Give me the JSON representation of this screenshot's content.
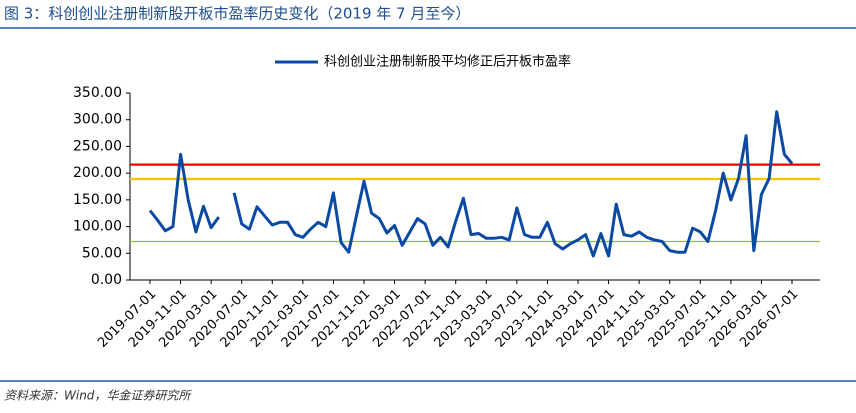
{
  "header": {
    "title": "图 3：科创创业注册制新股开板市盈率历史变化（2019 年 7 月至今）"
  },
  "chart_data": {
    "type": "line",
    "categories": [
      "2019-07-01",
      null,
      null,
      null,
      "2019-11-01",
      null,
      null,
      null,
      "2020-03-01",
      null,
      null,
      null,
      "2020-07-01",
      null,
      null,
      null,
      "2020-11-01",
      null,
      null,
      null,
      "2021-03-01",
      null,
      null,
      null,
      "2021-07-01",
      null,
      null,
      null,
      "2021-11-01",
      null,
      null,
      null,
      "2022-03-01",
      null,
      null,
      null,
      "2022-07-01",
      null,
      null,
      null,
      "2022-11-01",
      null,
      null,
      null,
      "2023-03-01",
      null,
      null,
      null,
      "2023-07-01",
      null,
      null,
      null,
      "2023-11-01",
      null,
      null,
      null,
      "2024-03-01",
      null,
      null,
      null,
      "2024-07-01",
      null,
      null,
      null,
      "2024-11-01",
      null,
      null,
      null,
      "2025-03-01",
      null,
      null,
      null,
      "2025-07-01",
      null,
      null,
      null,
      "2025-11-01",
      null,
      null,
      null,
      "2026-03-01",
      null,
      null,
      null,
      "2026-07-01"
    ],
    "series": [
      {
        "name": "科创创业注册制新股平均修正后开板市盈率",
        "color": "#0b4aa2",
        "values": [
          130,
          112,
          92,
          100,
          235,
          150,
          90,
          138,
          98,
          118,
          null,
          163,
          105,
          95,
          137,
          120,
          103,
          108,
          108,
          85,
          80,
          95,
          108,
          100,
          163,
          70,
          52,
          120,
          185,
          125,
          115,
          88,
          102,
          65,
          90,
          115,
          105,
          65,
          80,
          62,
          110,
          153,
          85,
          87,
          78,
          78,
          80,
          75,
          135,
          85,
          80,
          80,
          108,
          68,
          58,
          68,
          75,
          85,
          45,
          87,
          45,
          142,
          85,
          82,
          90,
          80,
          75,
          72,
          55,
          52,
          52,
          97,
          90,
          72,
          130,
          200,
          150,
          190,
          270,
          55,
          160,
          190,
          315,
          235,
          218
        ]
      }
    ],
    "reference_lines": [
      {
        "value": 216,
        "color": "#e60000"
      },
      {
        "value": 189,
        "color": "#ffc000"
      },
      {
        "value": 72,
        "color": "#8fbc45"
      }
    ],
    "ylim": [
      0,
      350
    ],
    "yticks": [
      {
        "value": 0,
        "label": "0.00"
      },
      {
        "value": 50,
        "label": "50.00"
      },
      {
        "value": 100,
        "label": "100.00"
      },
      {
        "value": 150,
        "label": "150.00"
      },
      {
        "value": 200,
        "label": "200.00"
      },
      {
        "value": 250,
        "label": "250.00"
      },
      {
        "value": 300,
        "label": "300.00"
      },
      {
        "value": 350,
        "label": "350.00"
      }
    ]
  },
  "footer": {
    "source": "资料来源：Wind，华金证券研究所"
  }
}
